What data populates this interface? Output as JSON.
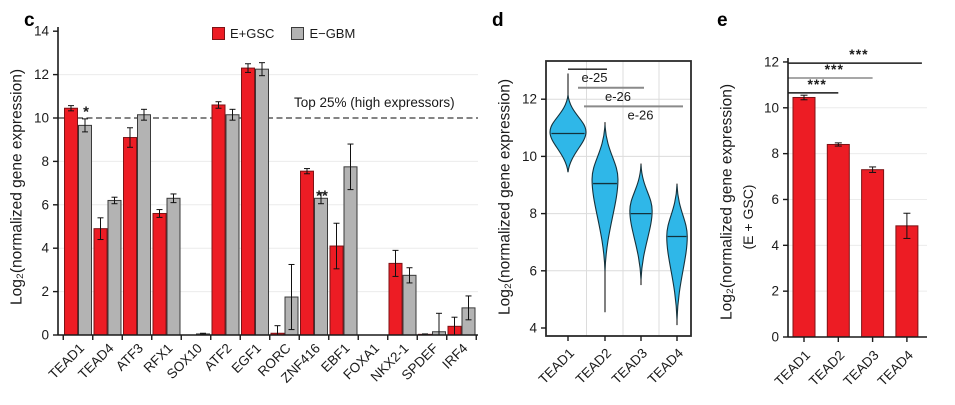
{
  "figure": {
    "background": "#ffffff"
  },
  "panels": {
    "c": {
      "letter": "c",
      "ylabel": "Log₂(normalized gene expression)",
      "legend": [
        {
          "label": "E+GSC",
          "color": "#ed1c24"
        },
        {
          "label": "E−GBM",
          "color": "#b3b3b3"
        }
      ]
    },
    "d": {
      "letter": "d",
      "ylabel": "Log₂(normalized gene expression)"
    },
    "e": {
      "letter": "e",
      "ylabel": "Log₂(normalized gene expression)",
      "ylabel2": "(E + GSC)"
    }
  },
  "chart_data": [
    {
      "id": "c",
      "type": "bar",
      "categories": [
        "TEAD1",
        "TEAD4",
        "ATF3",
        "RFX1",
        "SOX10",
        "ATF2",
        "EGF1",
        "RORC",
        "ZNF416",
        "EBF1",
        "FOXA1",
        "NKX2-1",
        "SPDEF",
        "IRF4"
      ],
      "series": [
        {
          "name": "E+GSC",
          "color": "#ed1c24",
          "values": [
            10.45,
            4.9,
            9.1,
            5.6,
            0,
            10.6,
            12.3,
            0.08,
            7.55,
            4.1,
            0,
            3.3,
            0.03,
            0.4
          ],
          "errors": [
            0.12,
            0.5,
            0.45,
            0.18,
            0,
            0.15,
            0.2,
            0.35,
            0.12,
            1.05,
            0,
            0.6,
            0.02,
            0.42
          ]
        },
        {
          "name": "E−GBM",
          "color": "#b3b3b3",
          "values": [
            9.66,
            6.2,
            10.15,
            6.3,
            0.05,
            10.15,
            12.25,
            1.75,
            6.3,
            7.75,
            0,
            2.75,
            0.15,
            1.25
          ],
          "errors": [
            0.3,
            0.15,
            0.25,
            0.2,
            0.03,
            0.25,
            0.3,
            1.5,
            0.25,
            1.05,
            0,
            0.35,
            0.85,
            0.55
          ]
        }
      ],
      "ylim": [
        0,
        14
      ],
      "yticks": [
        0,
        2,
        4,
        6,
        8,
        10,
        12,
        14
      ],
      "grid": "horizontal-light",
      "legend_position": "top-center",
      "threshold": {
        "value": 10,
        "style": "dashed",
        "label": "Top 25% (high expressors)"
      },
      "annotations": [
        {
          "text": "*",
          "category": "TEAD1",
          "series": "E−GBM",
          "at_value": 10.15
        },
        {
          "text": "**",
          "category": "ZNF416",
          "series": "E−GBM",
          "at_value": 6.3
        }
      ]
    },
    {
      "id": "d",
      "type": "violin",
      "color": "#2fb7e8",
      "categories": [
        "TEAD1",
        "TEAD2",
        "TEAD3",
        "TEAD4"
      ],
      "violins": [
        {
          "category": "TEAD1",
          "range_min": 9.45,
          "range_max": 12.9,
          "body_min": 9.45,
          "body_max": 12.15,
          "peak": 10.85,
          "median": 10.8,
          "rel_width": 1.0
        },
        {
          "category": "TEAD2",
          "range_min": 4.55,
          "range_max": 11.2,
          "body_min": 6.0,
          "body_max": 11.1,
          "peak": 9.2,
          "median": 9.05,
          "rel_width": 0.72
        },
        {
          "category": "TEAD3",
          "range_min": 5.5,
          "range_max": 9.75,
          "body_min": 5.7,
          "body_max": 9.7,
          "peak": 8.1,
          "median": 8.0,
          "rel_width": 0.62
        },
        {
          "category": "TEAD4",
          "range_min": 4.1,
          "range_max": 9.05,
          "body_min": 4.3,
          "body_max": 9.0,
          "peak": 7.2,
          "median": 7.2,
          "rel_width": 0.57
        }
      ],
      "ylim": [
        4,
        13.3
      ],
      "yticks": [
        4,
        6,
        8,
        10,
        12
      ],
      "grid": "both-light",
      "comparisons": [
        {
          "from": "TEAD1",
          "to": "TEAD2",
          "label": "e-25",
          "at_value": 13.05,
          "line_color": "#1a1a1a"
        },
        {
          "from": "TEAD1",
          "to": "TEAD3",
          "label": "e-26",
          "at_value": 12.4,
          "line_color": "#8a8a8a"
        },
        {
          "from": "TEAD1",
          "to": "TEAD4",
          "label": "e-26",
          "at_value": 11.75,
          "line_color": "#8a8a8a"
        }
      ]
    },
    {
      "id": "e",
      "type": "bar",
      "color": "#ed1c24",
      "categories": [
        "TEAD1",
        "TEAD2",
        "TEAD3",
        "TEAD4"
      ],
      "values": [
        10.45,
        8.4,
        7.3,
        4.85
      ],
      "errors": [
        0.1,
        0.07,
        0.12,
        0.55
      ],
      "ylim": [
        0,
        12
      ],
      "yticks": [
        0,
        2,
        4,
        6,
        8,
        10,
        12
      ],
      "grid": "horizontal-light",
      "comparisons": [
        {
          "from": "TEAD1",
          "to": "TEAD2",
          "label": "***",
          "at_value": 10.65,
          "line_color": "#1a1a1a"
        },
        {
          "from": "TEAD1",
          "to": "TEAD3",
          "label": "***",
          "at_value": 11.3,
          "line_color": "#8a8a8a"
        },
        {
          "from": "TEAD1",
          "to": "TEAD4",
          "label": "***",
          "at_value": 11.95,
          "line_color": "#1a1a1a"
        }
      ]
    }
  ]
}
